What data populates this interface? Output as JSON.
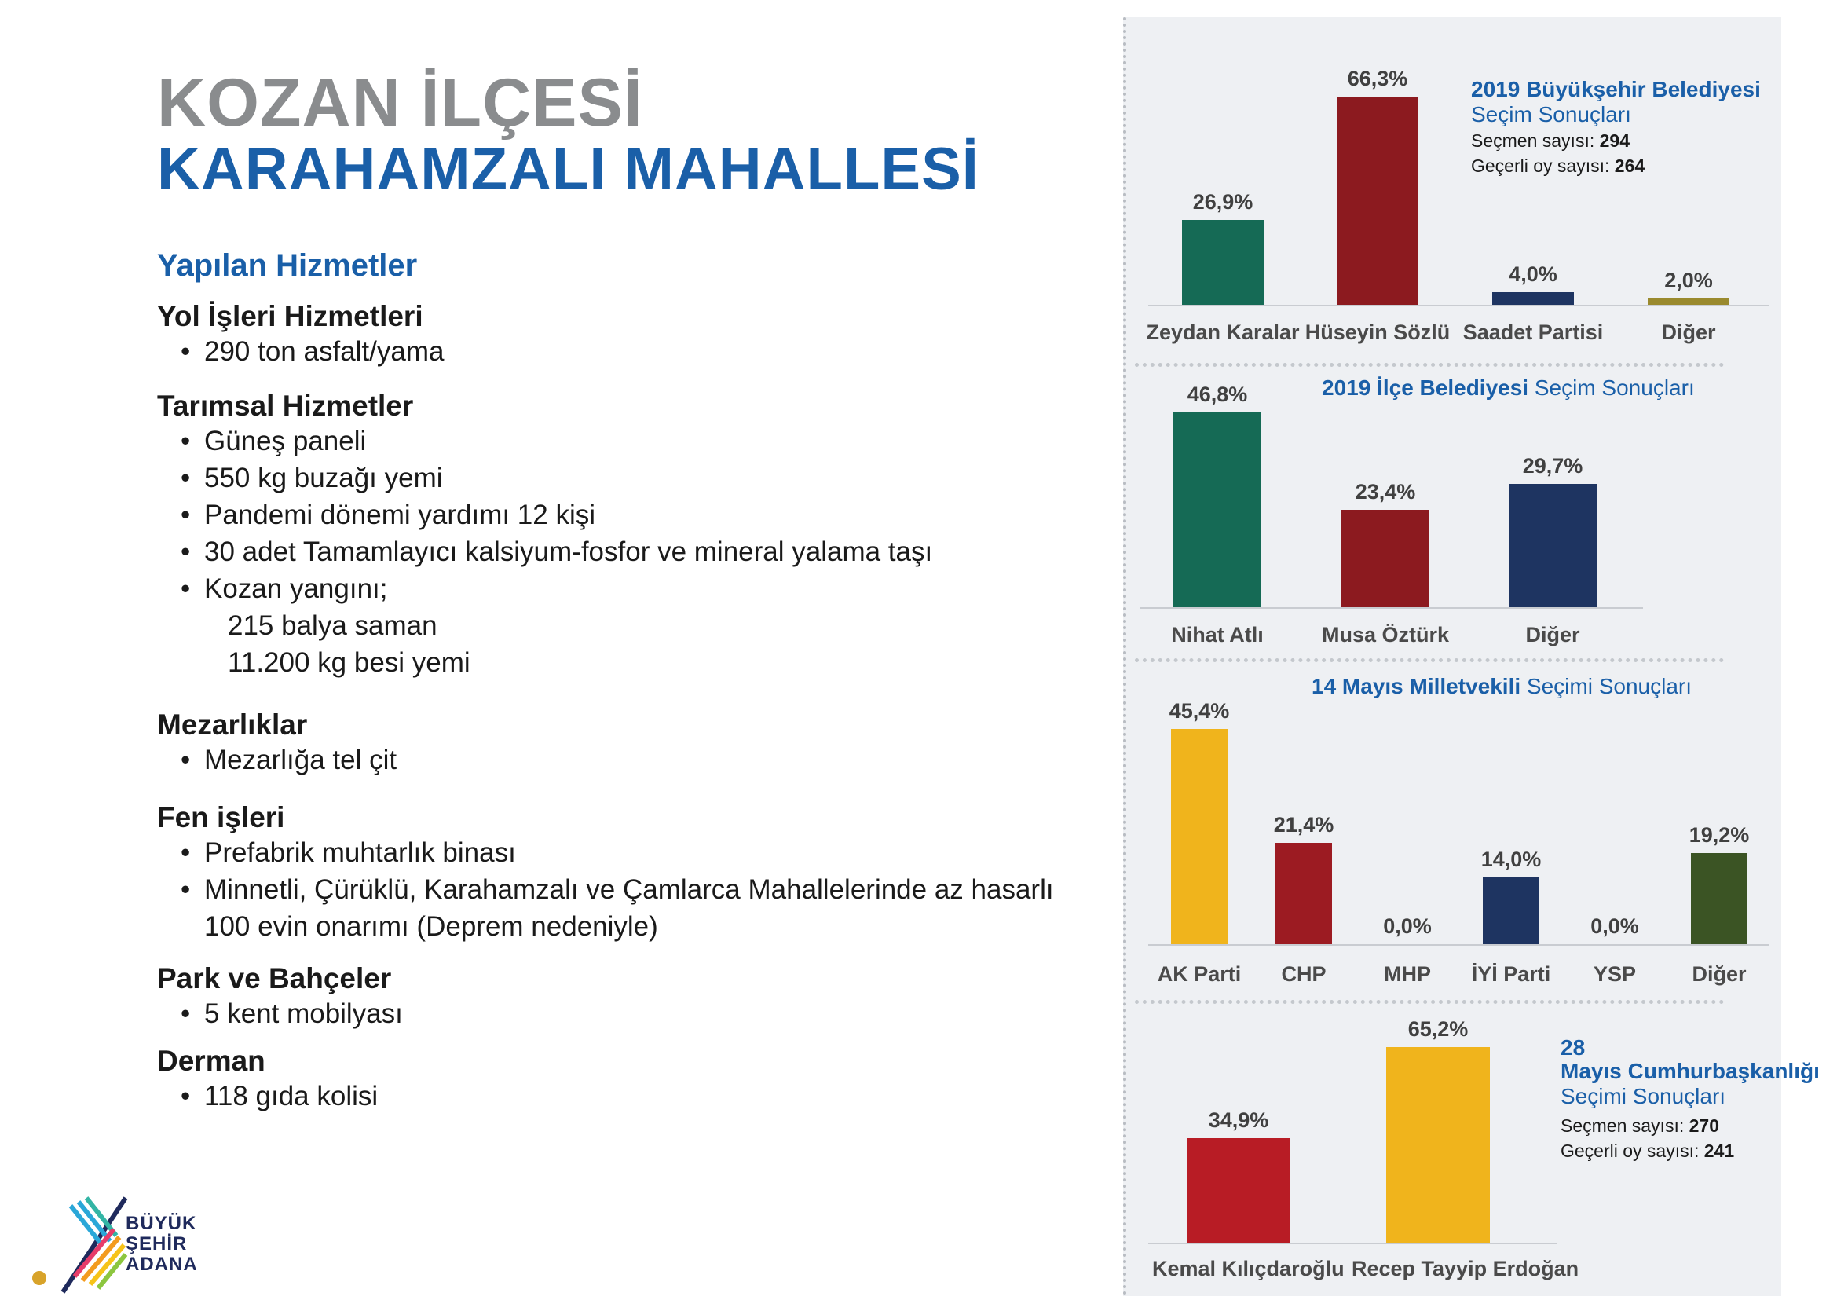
{
  "header": {
    "district": "KOZAN İLÇESİ",
    "neighborhood": "KARAHAMZALI MAHALLESİ"
  },
  "services": {
    "heading": "Yapılan Hizmetler",
    "sections": [
      {
        "title": "Yol İşleri Hizmetleri",
        "items": [
          "290 ton asfalt/yama"
        ]
      },
      {
        "title": "Tarımsal Hizmetler",
        "items": [
          "Güneş paneli",
          "550 kg buzağı yemi",
          "Pandemi dönemi yardımı 12 kişi",
          "30 adet Tamamlayıcı kalsiyum-fosfor ve mineral yalama taşı",
          "Kozan yangını;"
        ],
        "sub": [
          "215 balya saman",
          "11.200 kg besi yemi"
        ]
      },
      {
        "title": "Mezarlıklar",
        "items": [
          "Mezarlığa tel çit"
        ]
      },
      {
        "title": "Fen işleri",
        "items": [
          "Prefabrik muhtarlık binası",
          "Minnetli, Çürüklü, Karahamzalı ve Çamlarca Mahallelerinde az hasarlı"
        ],
        "cont": "100 evin onarımı (Deprem nedeniyle)"
      },
      {
        "title": "Park ve Bahçeler",
        "items": [
          "5 kent mobilyası"
        ]
      },
      {
        "title": "Derman",
        "items": [
          "118 gıda kolisi"
        ]
      }
    ]
  },
  "logo": {
    "line1": "BÜYÜK",
    "line2": "ŞEHİR",
    "line3": "ADANA"
  },
  "chart_data": [
    {
      "type": "bar",
      "title_bold": "2019 Büyükşehir Belediyesi",
      "title_light": "Seçim Sonuçları",
      "stats": [
        {
          "label": "Seçmen sayısı:",
          "value": "294"
        },
        {
          "label": "Geçerli oy sayısı:",
          "value": "264"
        }
      ],
      "categories": [
        "Zeydan Karalar",
        "Hüseyin Sözlü",
        "Saadet Partisi",
        "Diğer"
      ],
      "values": [
        26.9,
        66.3,
        4.0,
        2.0
      ],
      "labels": [
        "26,9%",
        "66,3%",
        "4,0%",
        "2,0%"
      ],
      "colors": [
        "#156a55",
        "#8c1a1f",
        "#1e3461",
        "#9a8a2e"
      ],
      "unit": "%"
    },
    {
      "type": "bar",
      "title_bold": "2019 İlçe Belediyesi",
      "title_light": "Seçim Sonuçları",
      "categories": [
        "Nihat Atlı",
        "Musa Öztürk",
        "Diğer"
      ],
      "values": [
        46.8,
        23.4,
        29.7
      ],
      "labels": [
        "46,8%",
        "23,4%",
        "29,7%"
      ],
      "colors": [
        "#156a55",
        "#8c1a1f",
        "#1e3461"
      ],
      "unit": "%"
    },
    {
      "type": "bar",
      "title_bold": "14 Mayıs Milletvekili",
      "title_light": "Seçimi Sonuçları",
      "categories": [
        "AK Parti",
        "CHP",
        "MHP",
        "İYİ Parti",
        "YSP",
        "Diğer"
      ],
      "values": [
        45.4,
        21.4,
        0.0,
        14.0,
        0.0,
        19.2
      ],
      "labels": [
        "45,4%",
        "21,4%",
        "0,0%",
        "14,0%",
        "0,0%",
        "19,2%"
      ],
      "colors": [
        "#f0b41c",
        "#9c1b22",
        "#9c1b22",
        "#1e3461",
        "#1e3461",
        "#3b5424"
      ],
      "unit": "%"
    },
    {
      "type": "bar",
      "title_bold": "28 Mayıs Cumhurbaşkanlığı",
      "title_light": "Seçimi Sonuçları",
      "stats": [
        {
          "label": "Seçmen sayısı:",
          "value": "270"
        },
        {
          "label": "Geçerli oy sayısı:",
          "value": "241"
        }
      ],
      "categories": [
        "Kemal Kılıçdaroğlu",
        "Recep Tayyip Erdoğan"
      ],
      "values": [
        34.9,
        65.2
      ],
      "labels": [
        "34,9%",
        "65,2%"
      ],
      "colors": [
        "#b81c25",
        "#f0b41c"
      ],
      "unit": "%"
    }
  ]
}
